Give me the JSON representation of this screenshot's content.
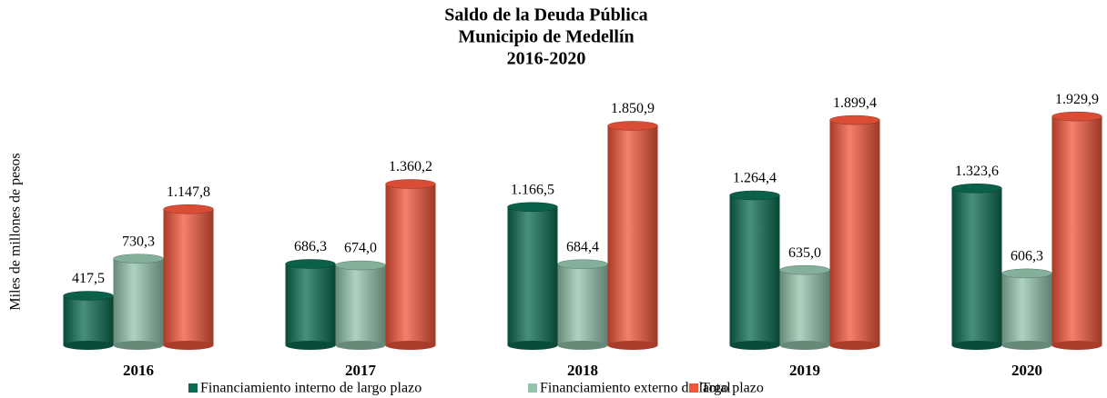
{
  "chart_data": {
    "type": "bar",
    "title": [
      "Saldo de la Deuda Pública",
      "Municipio de Medellín",
      "2016-2020"
    ],
    "y_label": "Miles de millones de pesos",
    "categories": [
      "2016",
      "2017",
      "2018",
      "2019",
      "2020"
    ],
    "series": [
      {
        "name": "Financiamiento interno de largo plazo",
        "color": "#0b6b50",
        "values": [
          417.5,
          686.3,
          1166.5,
          1264.4,
          1323.6
        ],
        "value_labels": [
          "417,5",
          "686,3",
          "1.166,5",
          "1.264,4",
          "1.323,6"
        ]
      },
      {
        "name": "Financiamiento externo de largo plazo",
        "color": "#93c4ac",
        "values": [
          730.3,
          674.0,
          684.4,
          635.0,
          606.3
        ],
        "value_labels": [
          "730,3",
          "674,0",
          "684,4",
          "635,0",
          "606,3"
        ]
      },
      {
        "name": "Total",
        "color": "#f2553a",
        "values": [
          1147.8,
          1360.2,
          1850.9,
          1899.4,
          1929.9
        ],
        "value_labels": [
          "1.147,8",
          "1.360,2",
          "1.850,9",
          "1.899,4",
          "1.929,9"
        ]
      }
    ],
    "ylim": [
      0,
      2000
    ],
    "legend": "bottom"
  }
}
